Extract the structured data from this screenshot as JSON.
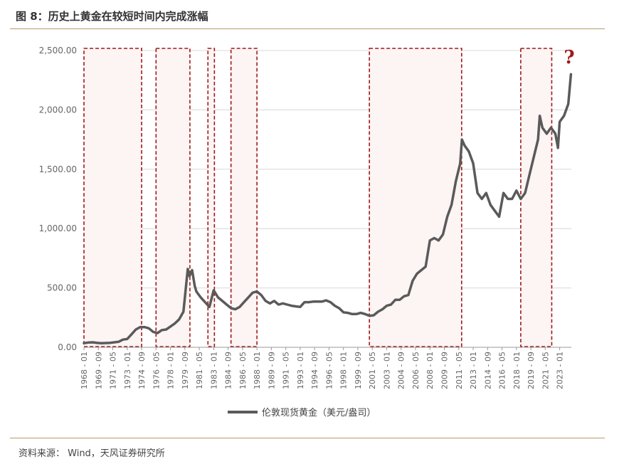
{
  "header": {
    "title": "图 8：历史上黄金在较短时间内完成涨幅"
  },
  "footer": {
    "source": "资料来源： Wind，天风证券研究所"
  },
  "annotation": {
    "text": "?"
  },
  "colors": {
    "line": "#5a5a5a",
    "box_stroke": "#9e1a1a",
    "box_fill": "#fdf4f4",
    "grid": "#d8d8d8",
    "rule": "#b89a6a"
  },
  "chart_data": {
    "type": "line",
    "title": "",
    "xlabel": "",
    "ylabel": "",
    "ylim": [
      0,
      2500
    ],
    "yticks": [
      "2,500.00",
      "2,000.00",
      "1,500.00",
      "1,000.00",
      "500.00",
      "0.00"
    ],
    "ytick_values": [
      2500,
      2000,
      1500,
      1000,
      500,
      0
    ],
    "xticks": [
      "1968 - 01",
      "1969 - 09",
      "1971 - 05",
      "1973 - 01",
      "1974 - 09",
      "1976 - 05",
      "1978 - 01",
      "1979 - 09",
      "1981 - 05",
      "1983 - 01",
      "1984 - 09",
      "1986 - 05",
      "1988 - 01",
      "1989 - 09",
      "1991 - 05",
      "1993 - 01",
      "1994 - 09",
      "1996 - 05",
      "1998 - 01",
      "1999 - 09",
      "2001 - 05",
      "2003 - 01",
      "2004 - 09",
      "2006 - 05",
      "2008 - 01",
      "2009 - 09",
      "2011 - 05",
      "2013 - 01",
      "2014 - 09",
      "2016 - 05",
      "2018 - 01",
      "2019 - 09",
      "2021 - 05",
      "2023 - 01"
    ],
    "grid": true,
    "legend_position": "bottom",
    "series": [
      {
        "name": "伦敦现货黄金（美元/盎司）",
        "x": [
          1968.0,
          1968.5,
          1969.0,
          1969.5,
          1970.0,
          1970.5,
          1971.0,
          1971.5,
          1972.0,
          1972.5,
          1973.0,
          1973.5,
          1974.0,
          1974.5,
          1975.0,
          1975.5,
          1976.0,
          1976.5,
          1977.0,
          1977.5,
          1978.0,
          1978.5,
          1979.0,
          1979.5,
          1980.0,
          1980.2,
          1980.5,
          1980.8,
          1981.0,
          1981.5,
          1982.0,
          1982.5,
          1983.0,
          1983.5,
          1984.0,
          1984.5,
          1985.0,
          1985.5,
          1986.0,
          1986.5,
          1987.0,
          1987.5,
          1988.0,
          1988.5,
          1989.0,
          1989.5,
          1990.0,
          1990.5,
          1991.0,
          1991.5,
          1992.0,
          1992.5,
          1993.0,
          1993.5,
          1994.0,
          1994.5,
          1995.0,
          1995.5,
          1996.0,
          1996.5,
          1997.0,
          1997.5,
          1998.0,
          1998.5,
          1999.0,
          1999.5,
          2000.0,
          2000.5,
          2001.0,
          2001.5,
          2002.0,
          2002.5,
          2003.0,
          2003.5,
          2004.0,
          2004.5,
          2005.0,
          2005.5,
          2006.0,
          2006.5,
          2007.0,
          2007.5,
          2008.0,
          2008.5,
          2009.0,
          2009.5,
          2010.0,
          2010.5,
          2011.0,
          2011.5,
          2011.7,
          2012.0,
          2012.5,
          2013.0,
          2013.5,
          2014.0,
          2014.5,
          2015.0,
          2015.5,
          2016.0,
          2016.5,
          2017.0,
          2017.5,
          2018.0,
          2018.5,
          2019.0,
          2019.5,
          2020.0,
          2020.5,
          2020.7,
          2021.0,
          2021.5,
          2022.0,
          2022.5,
          2022.8,
          2023.0,
          2023.5,
          2024.0,
          2024.3
        ],
        "y": [
          35,
          40,
          42,
          38,
          35,
          36,
          38,
          42,
          46,
          65,
          70,
          110,
          150,
          170,
          170,
          160,
          130,
          120,
          145,
          150,
          175,
          200,
          235,
          300,
          660,
          600,
          650,
          520,
          470,
          420,
          380,
          340,
          480,
          420,
          390,
          360,
          330,
          320,
          340,
          380,
          420,
          460,
          470,
          440,
          390,
          370,
          390,
          360,
          370,
          360,
          350,
          345,
          340,
          380,
          380,
          385,
          385,
          385,
          395,
          380,
          350,
          330,
          295,
          290,
          280,
          280,
          290,
          280,
          265,
          270,
          300,
          320,
          350,
          360,
          400,
          400,
          430,
          440,
          560,
          620,
          650,
          680,
          900,
          920,
          900,
          950,
          1100,
          1200,
          1400,
          1550,
          1750,
          1700,
          1650,
          1550,
          1300,
          1250,
          1300,
          1200,
          1150,
          1100,
          1300,
          1250,
          1250,
          1320,
          1250,
          1300,
          1450,
          1600,
          1750,
          1950,
          1850,
          1800,
          1850,
          1800,
          1680,
          1900,
          1950,
          2050,
          2300
        ]
      }
    ],
    "highlight_periods": [
      {
        "start": "1968 - 01",
        "end": "1974 - 09"
      },
      {
        "start": "1976 - 05",
        "end": "1980 - 04"
      },
      {
        "start": "1982 - 05",
        "end": "1983 - 02"
      },
      {
        "start": "1985 - 01",
        "end": "1988 - 01"
      },
      {
        "start": "2001 - 01",
        "end": "2011 - 09"
      },
      {
        "start": "2018 - 07",
        "end": "2022 - 02"
      }
    ]
  }
}
